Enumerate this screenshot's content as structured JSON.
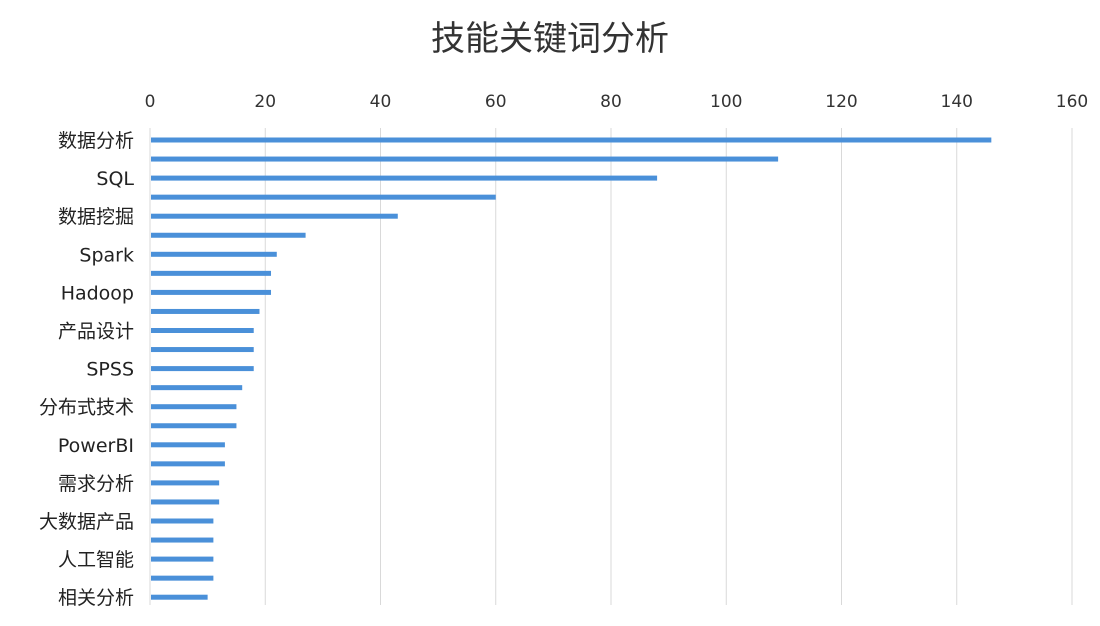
{
  "chart_data": {
    "type": "bar",
    "orientation": "horizontal",
    "title": "技能关键词分析",
    "xlim": [
      0,
      160
    ],
    "xticks": [
      0,
      20,
      40,
      60,
      80,
      100,
      120,
      140,
      160
    ],
    "x_axis_position": "top",
    "grid": true,
    "bar_color": "#4a90d9",
    "categories": [
      "数据分析",
      "",
      "SQL",
      "",
      "数据挖掘",
      "",
      "Spark",
      "",
      "Hadoop",
      "",
      "产品设计",
      "",
      "SPSS",
      "",
      "分布式技术",
      "",
      "PowerBI",
      "",
      "需求分析",
      "",
      "大数据产品",
      "",
      "人工智能",
      "",
      "相关分析"
    ],
    "values": [
      146,
      109,
      88,
      60,
      43,
      27,
      22,
      21,
      21,
      19,
      18,
      18,
      18,
      16,
      15,
      15,
      13,
      13,
      12,
      12,
      11,
      11,
      11,
      11,
      10
    ]
  }
}
